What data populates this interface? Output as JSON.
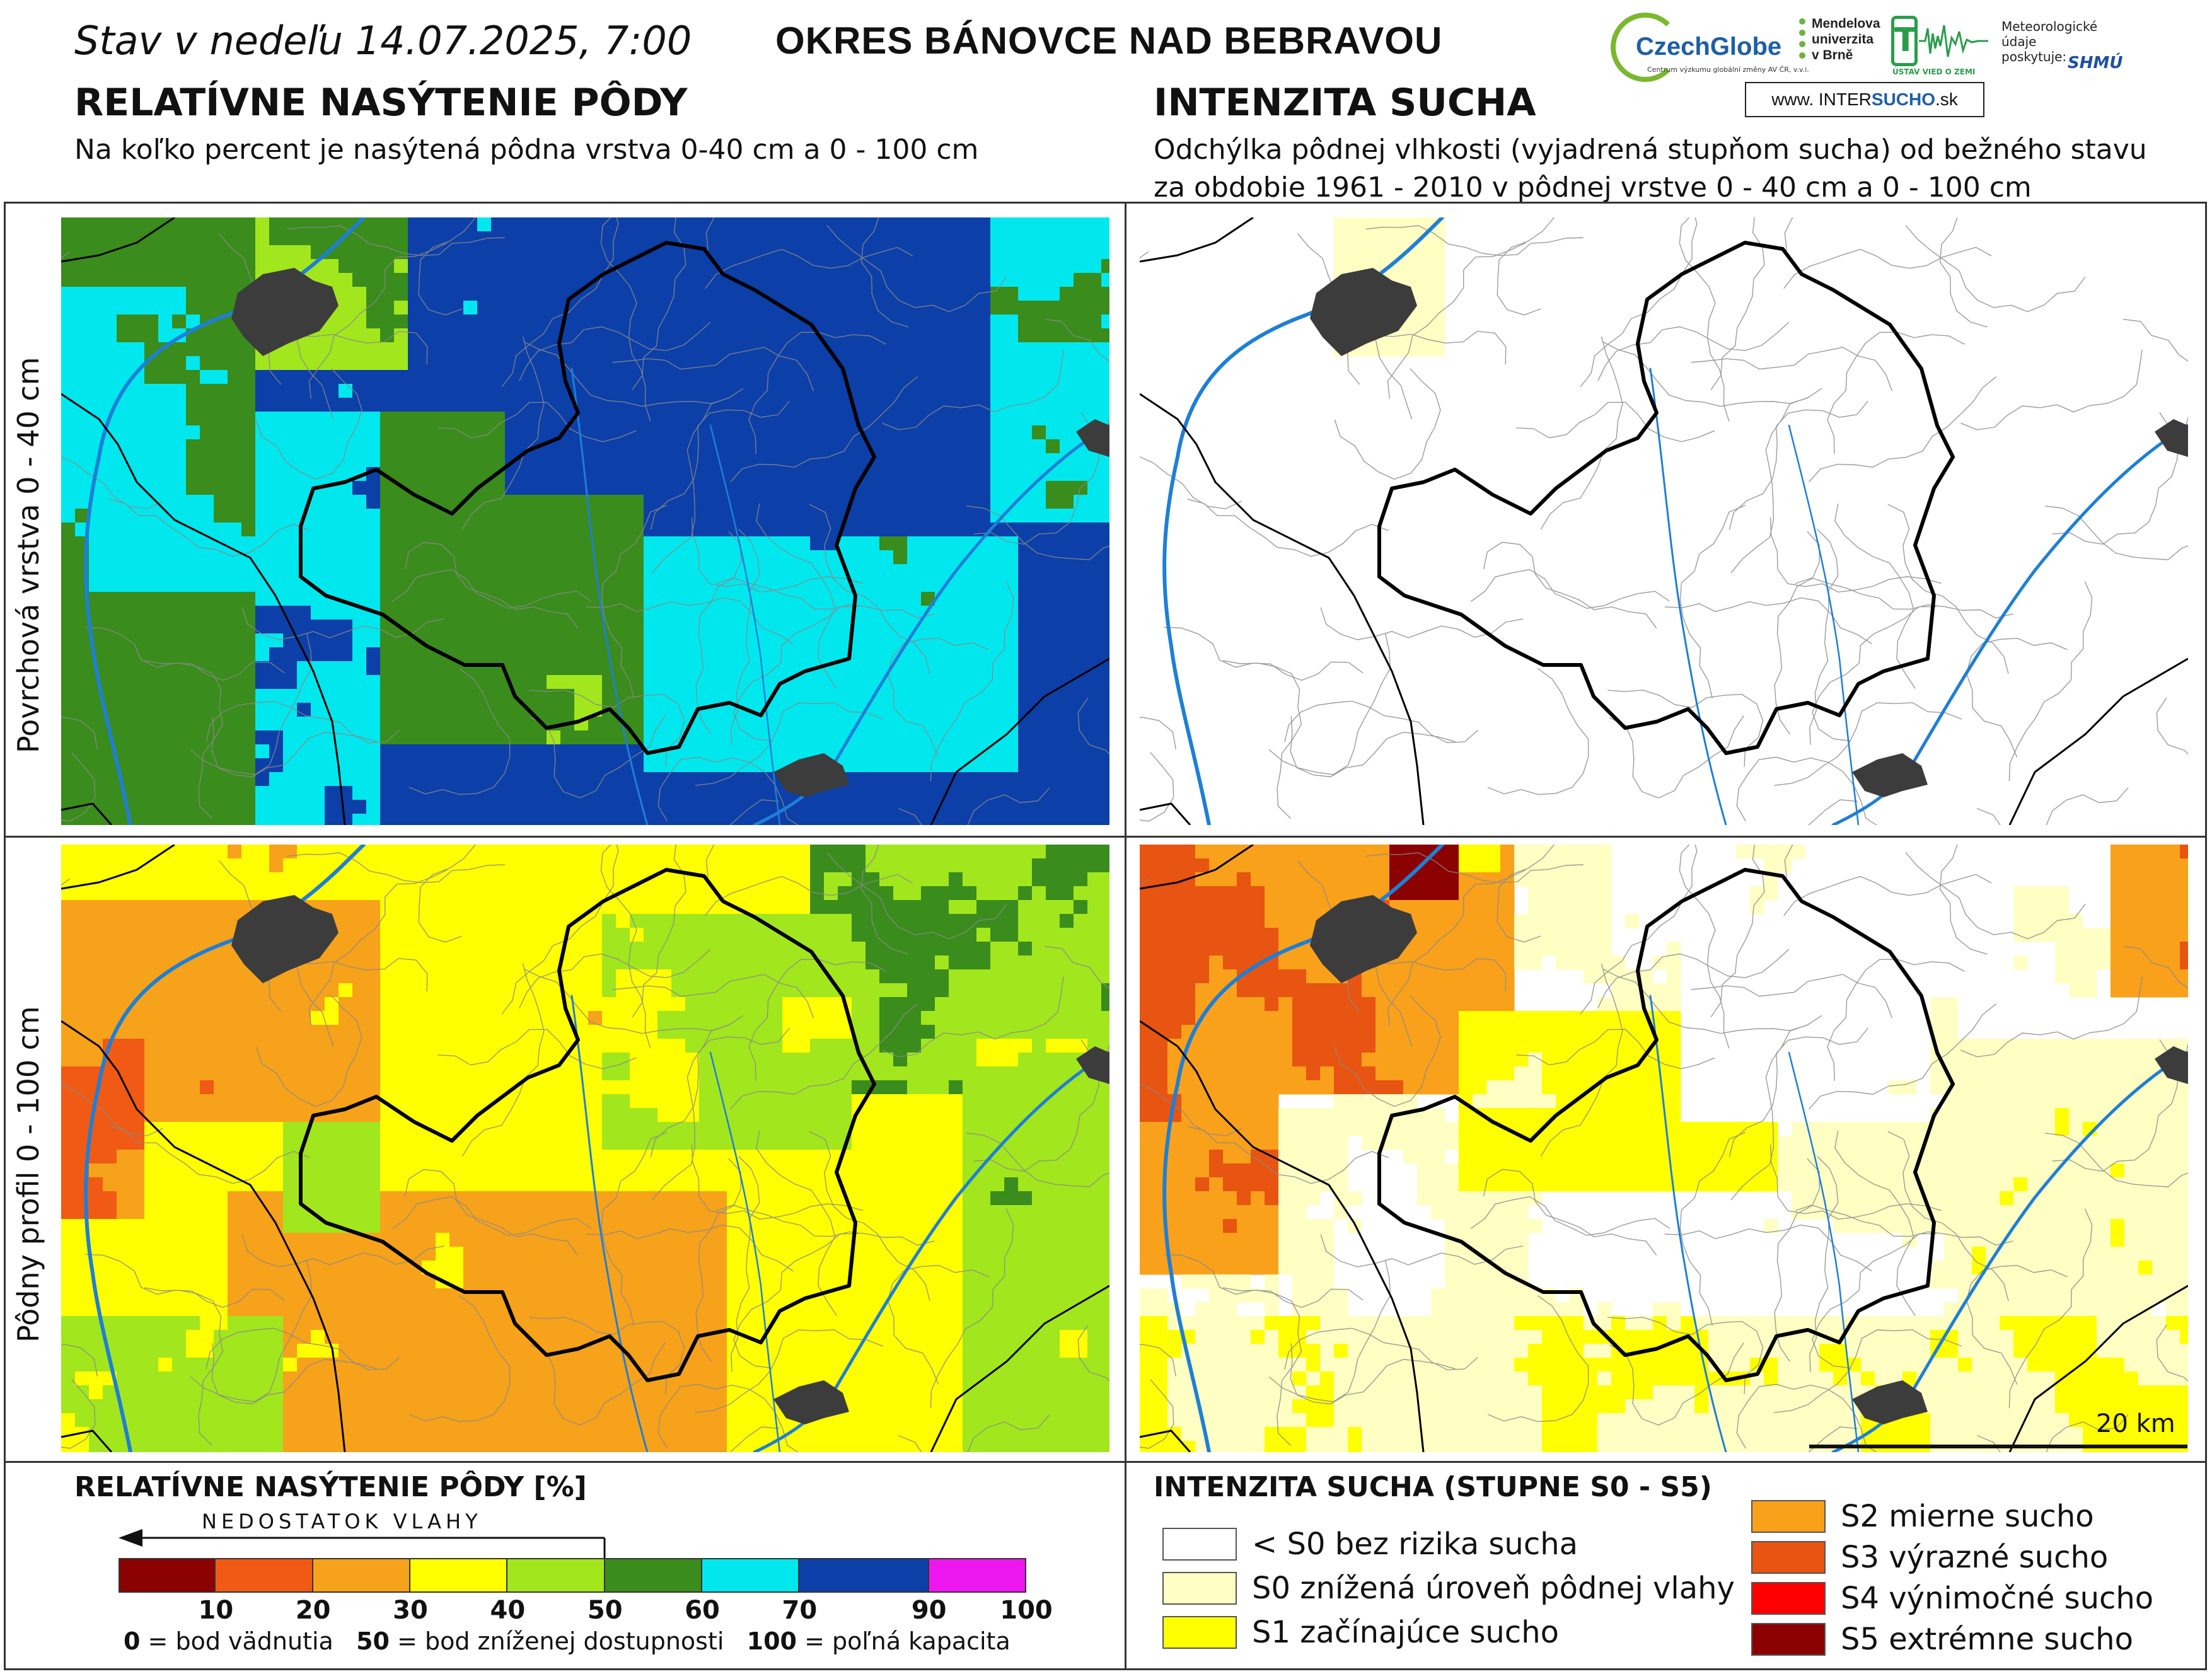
{
  "header": {
    "status_prefix": "Stav v nedeľu",
    "date_time": "14.07.2025, 7:00",
    "region_title": "OKRES  BÁNOVCE NAD BEBRAVOU"
  },
  "left_section": {
    "title": "RELATÍVNE NASÝTENIE PÔDY",
    "subtitle": "Na koľko percent je nasýtená pôdna vrstva 0-40 cm a 0 - 100 cm"
  },
  "right_section": {
    "title": "INTENZITA SUCHA",
    "subtitle_line1": "Odchýlka pôdnej vlhkosti (vyjadrená stupňom sucha) od bežného stavu",
    "subtitle_line2": "za obdobie 1961 - 2010 v pôdnej vrstve 0 - 40 cm a 0 - 100 cm"
  },
  "logos": {
    "czechglobe": "CzechGlobe",
    "czechglobe_small": "Centrum výzkumu globální změny AV ČR, v.v.i.",
    "mendel": "Mendelova\nuniverzita\nv Brně",
    "uvz": "ÚSTAV VIED O ZEMI",
    "meteo": "Meteorologické\núdaje\nposkytuje:",
    "shmu": "SHMÚ",
    "intersucho_prefix": "www. INTER",
    "intersucho_brand": "SUCHO",
    "intersucho_suffix": ".sk"
  },
  "row_labels": {
    "top": "Povrchová vrstva 0 - 40 cm",
    "bottom": "Pôdny profil 0 - 100 cm"
  },
  "scale": {
    "label": "20 km"
  },
  "saturation_legend": {
    "title": "RELATÍVNE NASÝTENIE PÔDY [%]",
    "arrow_text": "NEDOSTATOK VLAHY",
    "classes": [
      {
        "from": 0,
        "to": 10,
        "color": "#8b0000"
      },
      {
        "from": 10,
        "to": 20,
        "color": "#f05a14"
      },
      {
        "from": 20,
        "to": 30,
        "color": "#f7a21b"
      },
      {
        "from": 30,
        "to": 40,
        "color": "#ffff00"
      },
      {
        "from": 40,
        "to": 50,
        "color": "#a2e61e"
      },
      {
        "from": 50,
        "to": 60,
        "color": "#3a8c1c"
      },
      {
        "from": 60,
        "to": 70,
        "color": "#00e8ee"
      },
      {
        "from": 70,
        "to": 90,
        "color": "#0c3fa8"
      },
      {
        "from": 90,
        "to": 100,
        "color": "#ee16ee"
      }
    ],
    "ticks": [
      "10",
      "20",
      "30",
      "40",
      "50",
      "60",
      "70",
      "90",
      "100"
    ],
    "note_0_num": "0",
    "note_0_text": " = bod vädnutia",
    "note_50_num": "50",
    "note_50_text": " = bod zníženej dostupnosti",
    "note_100_num": "100",
    "note_100_text": " = poľná kapacita"
  },
  "drought_legend": {
    "title": "INTENZITA SUCHA (STUPNE S0 - S5)",
    "items": [
      {
        "label": "< S0 bez rizika sucha",
        "color": "#ffffff"
      },
      {
        "label": "S0 znížená úroveň pôdnej vlahy",
        "color": "#ffffc4"
      },
      {
        "label": "S1 začínajúce sucho",
        "color": "#ffff00"
      },
      {
        "label": "S2 mierne sucho",
        "color": "#f9a11b"
      },
      {
        "label": "S3 výrazné sucho",
        "color": "#e85411"
      },
      {
        "label": "S4 výnimočné sucho",
        "color": "#ff0000"
      },
      {
        "label": "S5 extrémne sucho",
        "color": "#8b0000"
      }
    ]
  },
  "map_colors": {
    "district_border": "#000000",
    "municipal_borders": "#8a8a8a",
    "rivers": "#1e7fd6",
    "towns": "#3c3c3c"
  }
}
